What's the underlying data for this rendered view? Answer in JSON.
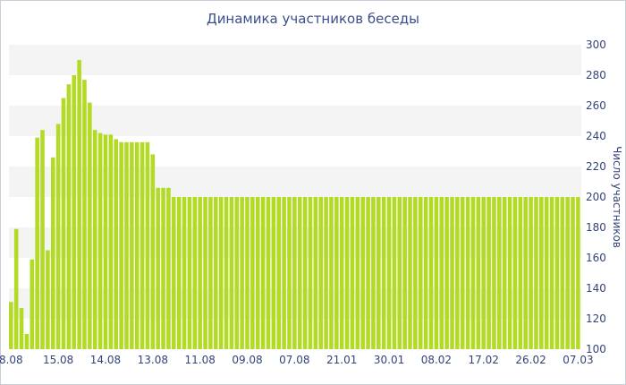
{
  "chart_data": {
    "type": "bar",
    "title": "Динамика участников беседы",
    "xlabel": "",
    "ylabel": "Число участников",
    "ylim": [
      100,
      300
    ],
    "yticks": [
      100,
      120,
      140,
      160,
      180,
      200,
      220,
      240,
      260,
      280,
      300
    ],
    "y_axis_side": "right",
    "grid": "alternating horizontal bands",
    "bar_color": "#b3db25",
    "band_color": "#f4f4f4",
    "xtick_labels": [
      "8.08",
      "15.08",
      "14.08",
      "13.08",
      "11.08",
      "09.08",
      "07.08",
      "21.01",
      "30.01",
      "08.02",
      "17.02",
      "26.02",
      "07.03"
    ],
    "xtick_bar_index": [
      0,
      9,
      18,
      27,
      36,
      45,
      54,
      63,
      72,
      81,
      90,
      99,
      108
    ],
    "values": [
      131,
      179,
      127,
      110,
      159,
      239,
      244,
      165,
      226,
      248,
      265,
      274,
      280,
      290,
      277,
      262,
      244,
      242,
      241,
      241,
      238,
      236,
      236,
      236,
      236,
      236,
      236,
      228,
      206,
      206,
      206,
      200,
      200,
      200,
      200,
      200,
      200,
      200,
      200,
      200,
      200,
      200,
      200,
      200,
      200,
      200,
      200,
      200,
      200,
      200,
      200,
      200,
      200,
      200,
      200,
      200,
      200,
      200,
      200,
      200,
      200,
      200,
      200,
      200,
      200,
      200,
      200,
      200,
      200,
      200,
      200,
      200,
      200,
      200,
      200,
      200,
      200,
      200,
      200,
      200,
      200,
      200,
      200,
      200,
      200,
      200,
      200,
      200,
      200,
      200,
      200,
      200,
      200,
      200,
      200,
      200,
      200,
      200,
      200,
      200,
      200,
      200,
      200,
      200,
      200,
      200,
      200,
      200,
      200
    ]
  }
}
